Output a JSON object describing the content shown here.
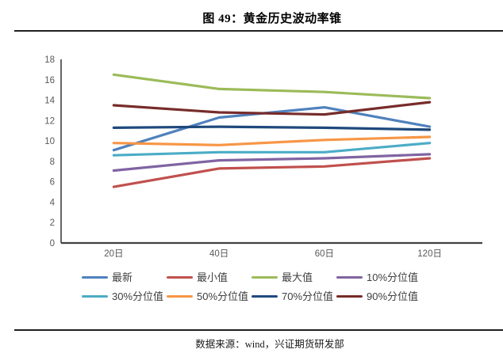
{
  "page": {
    "title": "图 49：黄金历史波动率锥",
    "footer": "数据来源：wind，兴证期货研发部"
  },
  "axis": {
    "label_color": "#595959",
    "line_color": "#404040"
  },
  "chart_data": {
    "type": "line",
    "title": "黄金历史波动率锥",
    "xlabel": "",
    "ylabel": "",
    "categories": [
      "20日",
      "40日",
      "60日",
      "120日"
    ],
    "series": [
      {
        "name": "最新",
        "color": "#4F81BD",
        "values": [
          9.1,
          12.3,
          13.3,
          11.4
        ]
      },
      {
        "name": "最小值",
        "color": "#C0504D",
        "values": [
          5.5,
          7.3,
          7.5,
          8.3
        ]
      },
      {
        "name": "最大值",
        "color": "#9BBB59",
        "values": [
          16.5,
          15.1,
          14.8,
          14.2
        ]
      },
      {
        "name": "10%分位值",
        "color": "#8064A2",
        "values": [
          7.1,
          8.1,
          8.3,
          8.7
        ]
      },
      {
        "name": "30%分位值",
        "color": "#4BACC6",
        "values": [
          8.6,
          8.9,
          8.9,
          9.8
        ]
      },
      {
        "name": "50%分位值",
        "color": "#F79646",
        "values": [
          9.8,
          9.6,
          10.1,
          10.4
        ]
      },
      {
        "name": "70%分位值",
        "color": "#1F497D",
        "values": [
          11.3,
          11.4,
          11.3,
          11.1
        ]
      },
      {
        "name": "90%分位值",
        "color": "#772C2A",
        "values": [
          13.5,
          12.8,
          12.6,
          13.8
        ]
      }
    ],
    "ylim": [
      0,
      18
    ],
    "ytick_step": 2,
    "grid": false,
    "legend_position": "bottom"
  }
}
